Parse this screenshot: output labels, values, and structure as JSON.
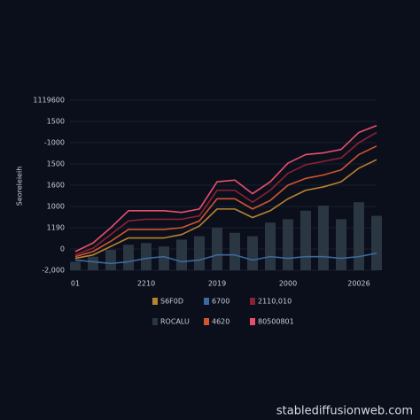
{
  "chart_data": {
    "type": "line",
    "y_axis_title": "Seoreleieih",
    "y_axis_labels": [
      "1119600",
      "1500",
      "-1000",
      "1500",
      "1600",
      "1000",
      "1190",
      "0",
      "-2,000"
    ],
    "categories": [
      "01",
      null,
      null,
      null,
      "2210",
      null,
      null,
      null,
      "2019",
      null,
      null,
      null,
      "2000",
      null,
      null,
      null,
      "20026",
      null
    ],
    "ylim": [
      0,
      100
    ],
    "grid": true,
    "series": [
      {
        "name": "ROCALU",
        "color": "#2b3643",
        "kind": "bar",
        "values": [
          5,
          8,
          12,
          15,
          16,
          14,
          18,
          20,
          25,
          22,
          20,
          28,
          30,
          35,
          38,
          30,
          40,
          32
        ]
      },
      {
        "name": "6700",
        "color": "#3d6a9a",
        "values": [
          6,
          5,
          4,
          5,
          7,
          8,
          5,
          6,
          9,
          9,
          6,
          8,
          7,
          8,
          8,
          7,
          8,
          10
        ]
      },
      {
        "name": "S6F0D",
        "color": "#b8822e",
        "values": [
          7,
          9,
          14,
          19,
          19,
          19,
          21,
          26,
          36,
          36,
          31,
          35,
          42,
          47,
          49,
          52,
          60,
          65
        ]
      },
      {
        "name": "4620",
        "color": "#d0552f",
        "values": [
          8,
          11,
          17,
          24,
          24,
          24,
          25,
          29,
          42,
          42,
          36,
          41,
          50,
          54,
          56,
          59,
          68,
          73
        ]
      },
      {
        "name": "2110,010",
        "color": "#8a2232",
        "values": [
          9,
          13,
          21,
          29,
          30,
          30,
          30,
          32,
          47,
          47,
          40,
          47,
          57,
          62,
          64,
          66,
          75,
          81
        ]
      },
      {
        "name": "80500801",
        "color": "#e8506a",
        "values": [
          11,
          16,
          25,
          35,
          35,
          35,
          34,
          36,
          52,
          53,
          45,
          52,
          63,
          68,
          69,
          71,
          81,
          85
        ]
      }
    ],
    "legend_order": [
      2,
      1,
      4,
      0,
      3,
      5
    ]
  },
  "watermark": "stablediffusionweb.com"
}
